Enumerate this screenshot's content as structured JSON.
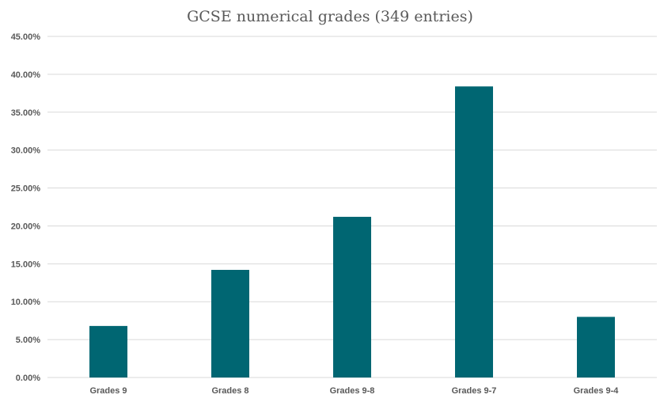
{
  "chart_data": {
    "type": "bar",
    "title": "GCSE numerical grades (349 entries)",
    "categories": [
      "Grades 9",
      "Grades 8",
      "Grades 9-8",
      "Grades 9-7",
      "Grades 9-4"
    ],
    "values": [
      6.8,
      14.2,
      21.2,
      38.4,
      8.0
    ],
    "xlabel": "",
    "ylabel": "",
    "ylim": [
      0,
      45
    ],
    "yticks": [
      "0.00%",
      "5.00%",
      "10.00%",
      "15.00%",
      "20.00%",
      "25.00%",
      "30.00%",
      "35.00%",
      "40.00%",
      "45.00%"
    ],
    "grid": true,
    "legend": "none",
    "bar_color": "#006672",
    "grid_color": "#d9d9d9"
  }
}
